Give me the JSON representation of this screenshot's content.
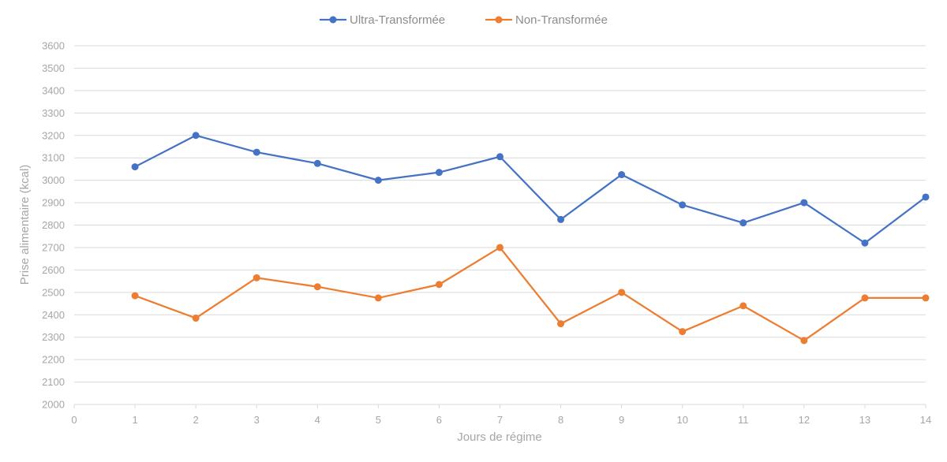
{
  "chart_data": {
    "type": "line",
    "title": "",
    "xlabel": "Jours de régime",
    "ylabel": "Prise alimentaire (kcal)",
    "x_ticks": [
      "0",
      "1",
      "2",
      "3",
      "4",
      "5",
      "6",
      "7",
      "8",
      "9",
      "10",
      "11",
      "12",
      "13",
      "14"
    ],
    "xlim": [
      0,
      14
    ],
    "ylim": [
      2000,
      3600
    ],
    "y_ticks": [
      "2000",
      "2100",
      "2200",
      "2300",
      "2400",
      "2500",
      "2600",
      "2700",
      "2800",
      "2900",
      "3000",
      "3100",
      "3200",
      "3300",
      "3400",
      "3500",
      "3600"
    ],
    "grid": true,
    "legend_position": "top-center",
    "x": [
      1,
      2,
      3,
      4,
      5,
      6,
      7,
      8,
      9,
      10,
      11,
      12,
      13,
      14
    ],
    "series": [
      {
        "name": "Ultra-Transformée",
        "color": "#4472C4",
        "values": [
          3060,
          3200,
          3125,
          3075,
          3000,
          3035,
          3105,
          2825,
          3025,
          2890,
          2810,
          2900,
          2720,
          2925
        ]
      },
      {
        "name": "Non-Transformée",
        "color": "#ED7D31",
        "values": [
          2485,
          2385,
          2565,
          2525,
          2475,
          2535,
          2700,
          2360,
          2500,
          2325,
          2440,
          2285,
          2475,
          2475
        ]
      }
    ]
  }
}
